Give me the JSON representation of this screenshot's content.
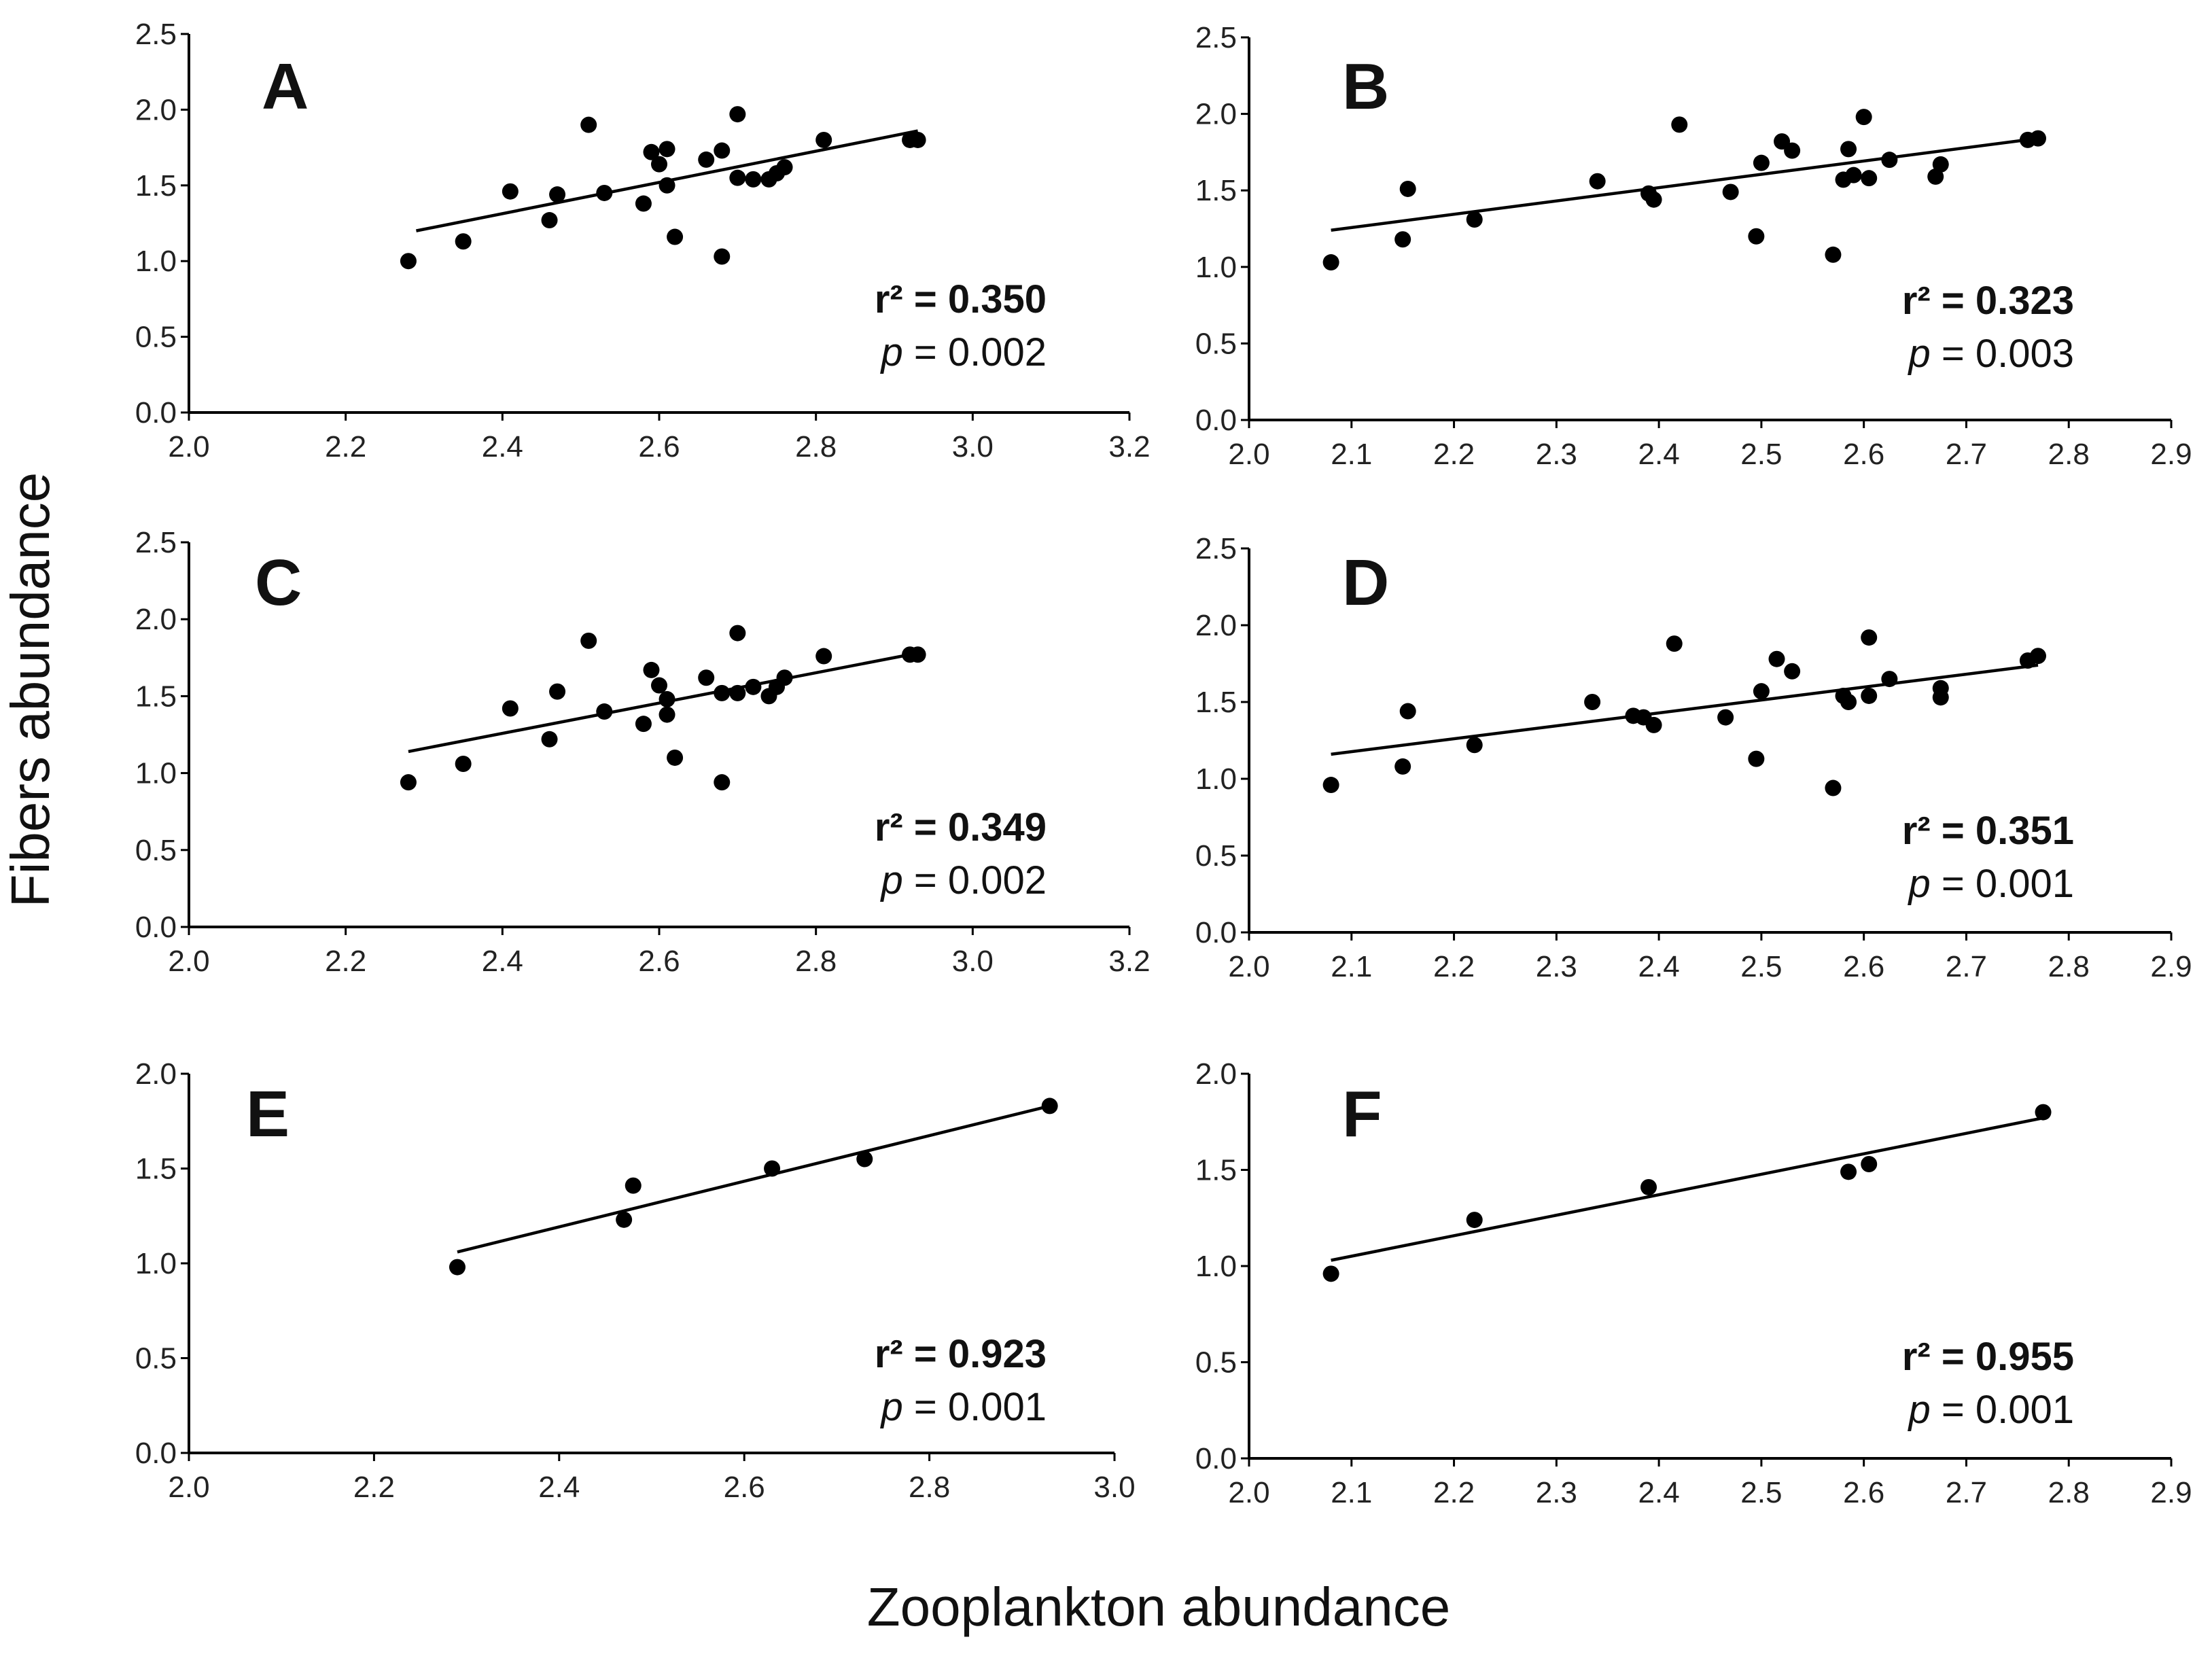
{
  "figure": {
    "ylabel": "Fibers abundance",
    "xlabel": "Zooplankton abundance",
    "colors": {
      "ink": "#000000",
      "background": "#ffffff"
    }
  },
  "chart_data": [
    {
      "id": "A",
      "type": "scatter",
      "panel_label": "A",
      "xlim": [
        2.0,
        3.2
      ],
      "ylim": [
        0.0,
        2.5
      ],
      "xticks": [
        2.0,
        2.2,
        2.4,
        2.6,
        2.8,
        3.0,
        3.2
      ],
      "xtick_labels": [
        "2.0",
        "2.2",
        "2.4",
        "2.6",
        "2.8",
        "3.0",
        "3.2"
      ],
      "yticks": [
        0.0,
        0.5,
        1.0,
        1.5,
        2.0,
        2.5
      ],
      "ytick_labels": [
        "0.0",
        "0.5",
        "1.0",
        "1.5",
        "2.0",
        "2.5"
      ],
      "x": [
        2.28,
        2.35,
        2.41,
        2.46,
        2.47,
        2.51,
        2.53,
        2.58,
        2.59,
        2.6,
        2.61,
        2.61,
        2.62,
        2.66,
        2.68,
        2.68,
        2.7,
        2.7,
        2.72,
        2.74,
        2.75,
        2.76,
        2.81,
        2.92,
        2.93
      ],
      "y": [
        1.0,
        1.13,
        1.46,
        1.27,
        1.44,
        1.9,
        1.45,
        1.38,
        1.72,
        1.64,
        1.74,
        1.5,
        1.16,
        1.67,
        1.73,
        1.03,
        1.97,
        1.55,
        1.54,
        1.54,
        1.58,
        1.62,
        1.8,
        1.8,
        1.8
      ],
      "fit": {
        "x": [
          2.29,
          2.93
        ],
        "y": [
          1.2,
          1.86
        ]
      },
      "r2_label": "r² = 0.350",
      "p_prefix": "p",
      "p_value": " = 0.002"
    },
    {
      "id": "B",
      "type": "scatter",
      "panel_label": "B",
      "xlim": [
        2.0,
        2.9
      ],
      "ylim": [
        0.0,
        2.5
      ],
      "xticks": [
        2.0,
        2.1,
        2.2,
        2.3,
        2.4,
        2.5,
        2.6,
        2.7,
        2.8,
        2.9
      ],
      "xtick_labels": [
        "2.0",
        "2.1",
        "2.2",
        "2.3",
        "2.4",
        "2.5",
        "2.6",
        "2.7",
        "2.8",
        "2.9"
      ],
      "yticks": [
        0.0,
        0.5,
        1.0,
        1.5,
        2.0,
        2.5
      ],
      "ytick_labels": [
        "0.0",
        "0.5",
        "1.0",
        "1.5",
        "2.0",
        "2.5"
      ],
      "x": [
        2.08,
        2.15,
        2.155,
        2.22,
        2.34,
        2.39,
        2.395,
        2.42,
        2.47,
        2.495,
        2.5,
        2.52,
        2.53,
        2.57,
        2.58,
        2.585,
        2.59,
        2.6,
        2.605,
        2.625,
        2.67,
        2.675,
        2.76,
        2.77
      ],
      "y": [
        1.03,
        1.18,
        1.51,
        1.31,
        1.56,
        1.48,
        1.44,
        1.93,
        1.49,
        1.2,
        1.68,
        1.82,
        1.76,
        1.08,
        1.57,
        1.77,
        1.6,
        1.98,
        1.58,
        1.7,
        1.59,
        1.67,
        1.83,
        1.84
      ],
      "fit": {
        "x": [
          2.08,
          2.77
        ],
        "y": [
          1.24,
          1.84
        ]
      },
      "r2_label": "r² = 0.323",
      "p_prefix": "p",
      "p_value": " = 0.003"
    },
    {
      "id": "C",
      "type": "scatter",
      "panel_label": "C",
      "xlim": [
        2.0,
        3.2
      ],
      "ylim": [
        0.0,
        2.5
      ],
      "xticks": [
        2.0,
        2.2,
        2.4,
        2.6,
        2.8,
        3.0,
        3.2
      ],
      "xtick_labels": [
        "2.0",
        "2.2",
        "2.4",
        "2.6",
        "2.8",
        "3.0",
        "3.2"
      ],
      "yticks": [
        0.0,
        0.5,
        1.0,
        1.5,
        2.0,
        2.5
      ],
      "ytick_labels": [
        "0.0",
        "0.5",
        "1.0",
        "1.5",
        "2.0",
        "2.5"
      ],
      "x": [
        2.28,
        2.35,
        2.41,
        2.46,
        2.47,
        2.51,
        2.53,
        2.58,
        2.59,
        2.6,
        2.61,
        2.61,
        2.62,
        2.66,
        2.68,
        2.68,
        2.7,
        2.7,
        2.72,
        2.74,
        2.75,
        2.76,
        2.81,
        2.92,
        2.93
      ],
      "y": [
        0.94,
        1.06,
        1.42,
        1.22,
        1.53,
        1.86,
        1.4,
        1.32,
        1.67,
        1.57,
        1.48,
        1.38,
        1.1,
        1.62,
        0.94,
        1.52,
        1.91,
        1.52,
        1.56,
        1.5,
        1.56,
        1.62,
        1.76,
        1.77,
        1.77
      ],
      "fit": {
        "x": [
          2.28,
          2.93
        ],
        "y": [
          1.14,
          1.78
        ]
      },
      "r2_label": "r² = 0.349",
      "p_prefix": "p",
      "p_value": " = 0.002"
    },
    {
      "id": "D",
      "type": "scatter",
      "panel_label": "D",
      "xlim": [
        2.0,
        2.9
      ],
      "ylim": [
        0.0,
        2.5
      ],
      "xticks": [
        2.0,
        2.1,
        2.2,
        2.3,
        2.4,
        2.5,
        2.6,
        2.7,
        2.8,
        2.9
      ],
      "xtick_labels": [
        "2.0",
        "2.1",
        "2.2",
        "2.3",
        "2.4",
        "2.5",
        "2.6",
        "2.7",
        "2.8",
        "2.9"
      ],
      "yticks": [
        0.0,
        0.5,
        1.0,
        1.5,
        2.0,
        2.5
      ],
      "ytick_labels": [
        "0.0",
        "0.5",
        "1.0",
        "1.5",
        "2.0",
        "2.5"
      ],
      "x": [
        2.08,
        2.15,
        2.155,
        2.22,
        2.335,
        2.375,
        2.385,
        2.395,
        2.415,
        2.465,
        2.495,
        2.5,
        2.515,
        2.53,
        2.57,
        2.58,
        2.585,
        2.605,
        2.605,
        2.625,
        2.675,
        2.675,
        2.76,
        2.77
      ],
      "y": [
        0.96,
        1.08,
        1.44,
        1.22,
        1.5,
        1.41,
        1.4,
        1.35,
        1.88,
        1.4,
        1.13,
        1.57,
        1.78,
        1.7,
        0.94,
        1.54,
        1.5,
        1.92,
        1.54,
        1.65,
        1.59,
        1.53,
        1.77,
        1.8
      ],
      "fit": {
        "x": [
          2.08,
          2.77
        ],
        "y": [
          1.16,
          1.74
        ]
      },
      "r2_label": "r² = 0.351",
      "p_prefix": "p",
      "p_value": " = 0.001"
    },
    {
      "id": "E",
      "type": "scatter",
      "panel_label": "E",
      "xlim": [
        2.0,
        3.0
      ],
      "ylim": [
        0.0,
        2.0
      ],
      "xticks": [
        2.0,
        2.2,
        2.4,
        2.6,
        2.8,
        3.0
      ],
      "xtick_labels": [
        "2.0",
        "2.2",
        "2.4",
        "2.6",
        "2.8",
        "3.0"
      ],
      "yticks": [
        0.0,
        0.5,
        1.0,
        1.5,
        2.0
      ],
      "ytick_labels": [
        "0.0",
        "0.5",
        "1.0",
        "1.5",
        "2.0"
      ],
      "x": [
        2.29,
        2.47,
        2.48,
        2.63,
        2.73,
        2.93
      ],
      "y": [
        0.98,
        1.23,
        1.41,
        1.5,
        1.55,
        1.83
      ],
      "fit": {
        "x": [
          2.29,
          2.93
        ],
        "y": [
          1.06,
          1.83
        ]
      },
      "r2_label": "r² = 0.923",
      "p_prefix": "p",
      "p_value": " = 0.001"
    },
    {
      "id": "F",
      "type": "scatter",
      "panel_label": "F",
      "xlim": [
        2.0,
        2.9
      ],
      "ylim": [
        0.0,
        2.0
      ],
      "xticks": [
        2.0,
        2.1,
        2.2,
        2.3,
        2.4,
        2.5,
        2.6,
        2.7,
        2.8,
        2.9
      ],
      "xtick_labels": [
        "2.0",
        "2.1",
        "2.2",
        "2.3",
        "2.4",
        "2.5",
        "2.6",
        "2.7",
        "2.8",
        "2.9"
      ],
      "yticks": [
        0.0,
        0.5,
        1.0,
        1.5,
        2.0
      ],
      "ytick_labels": [
        "0.0",
        "0.5",
        "1.0",
        "1.5",
        "2.0"
      ],
      "x": [
        2.08,
        2.22,
        2.39,
        2.585,
        2.605,
        2.775
      ],
      "y": [
        0.96,
        1.24,
        1.41,
        1.49,
        1.53,
        1.8
      ],
      "fit": {
        "x": [
          2.08,
          2.775
        ],
        "y": [
          1.03,
          1.77
        ]
      },
      "r2_label": "r² = 0.955",
      "p_prefix": "p",
      "p_value": " = 0.001"
    }
  ]
}
